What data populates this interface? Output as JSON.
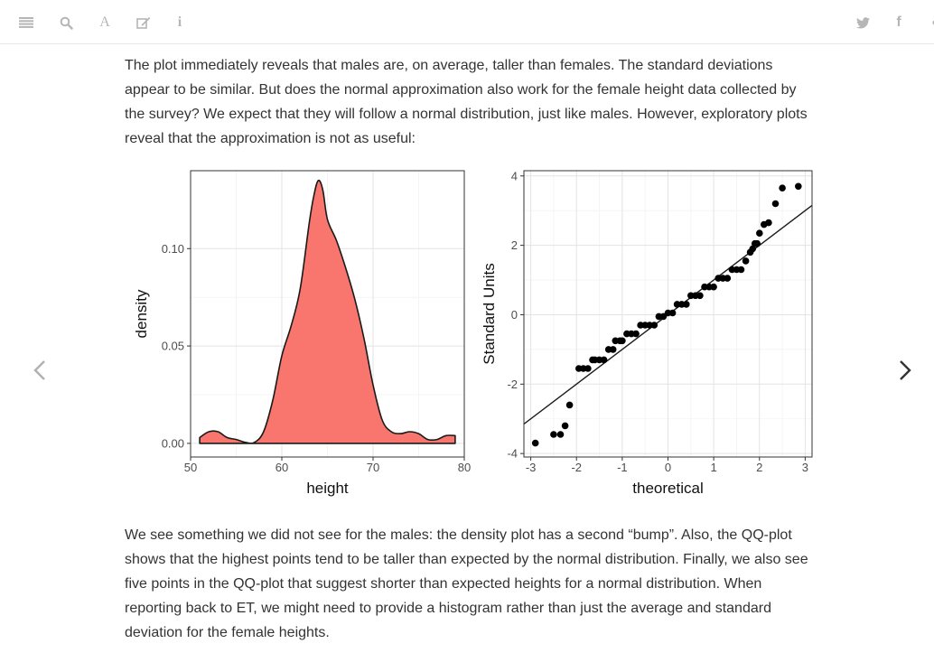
{
  "toolbar": {
    "left_icons": [
      "menu-icon",
      "search-icon",
      "font-icon",
      "edit-icon",
      "info-icon"
    ],
    "font_glyph": "A",
    "info_glyph": "i",
    "right_icons": [
      "twitter-icon",
      "facebook-icon",
      "share-icon"
    ],
    "facebook_glyph": "f",
    "icon_color": "#b6b6b6"
  },
  "content": {
    "paragraph1": "The plot immediately reveals that males are, on average, taller than females. The standard deviations appear to be similar. But does the normal approximation also work for the female height data collected by the survey? We expect that they will follow a normal distribution, just like males. However, exploratory plots reveal that the approximation is not as useful:",
    "paragraph2": "We see something we did not see for the males: the density plot has a second “bump”. Also, the QQ-plot shows that the highest points tend to be taller than expected by the normal distribution. Finally, we also see five points in the QQ-plot that suggest shorter than expected heights for a normal distribution. When reporting back to ET, we might need to provide a histogram rather than just the average and standard deviation for the female heights."
  },
  "navigation": {
    "prev": "chevron-left-icon",
    "next": "chevron-right-icon"
  },
  "chart_data": [
    {
      "type": "area",
      "title": "",
      "xlabel": "height",
      "ylabel": "density",
      "xlim": [
        50,
        80
      ],
      "ylim": [
        -0.007,
        0.14
      ],
      "x_ticks": [
        50,
        60,
        70,
        80
      ],
      "x_tick_labels": [
        "50",
        "60",
        "70",
        "80"
      ],
      "y_ticks": [
        0,
        0.05,
        0.1
      ],
      "y_tick_labels": [
        "0.00",
        "0.05",
        "0.10"
      ],
      "grid": true,
      "legend": "none",
      "fill_color": "#f8766d",
      "series": [
        {
          "x": [
            51,
            52,
            53,
            54,
            55,
            56,
            57,
            58,
            59,
            60,
            61,
            62,
            63,
            63.5,
            64,
            64.5,
            65,
            66,
            67,
            68,
            69,
            70,
            71,
            72,
            73,
            74,
            75,
            76,
            77,
            78,
            79
          ],
          "y": [
            0.003,
            0.006,
            0.006,
            0.003,
            0.002,
            0.0005,
            0.0005,
            0.006,
            0.022,
            0.045,
            0.06,
            0.079,
            0.113,
            0.127,
            0.135,
            0.13,
            0.115,
            0.104,
            0.09,
            0.074,
            0.054,
            0.03,
            0.012,
            0.006,
            0.005,
            0.006,
            0.005,
            0.002,
            0.002,
            0.004,
            0.004
          ]
        }
      ]
    },
    {
      "type": "scatter",
      "title": "",
      "xlabel": "theoretical",
      "ylabel": "Standard Units",
      "xlim": [
        -3.15,
        3.15
      ],
      "ylim": [
        -4.1,
        4.15
      ],
      "x_ticks": [
        -3,
        -2,
        -1,
        0,
        1,
        2,
        3
      ],
      "x_tick_labels": [
        "-3",
        "-2",
        "-1",
        "0",
        "1",
        "2",
        "3"
      ],
      "y_ticks": [
        -4,
        -2,
        0,
        2,
        4
      ],
      "y_tick_labels": [
        "-4",
        "-2",
        "0",
        "2",
        "4"
      ],
      "grid": true,
      "legend": "none",
      "reference_line": {
        "slope": 1,
        "intercept": 0
      },
      "series": [
        {
          "x": [
            -2.9,
            -2.5,
            -2.35,
            -2.25,
            -2.15,
            -1.95,
            -1.85,
            -1.75,
            -1.65,
            -1.6,
            -1.5,
            -1.4,
            -1.3,
            -1.2,
            -1.15,
            -1.05,
            -1.0,
            -0.9,
            -0.8,
            -0.7,
            -0.6,
            -0.5,
            -0.4,
            -0.3,
            -0.2,
            -0.1,
            0.0,
            0.1,
            0.2,
            0.3,
            0.4,
            0.5,
            0.6,
            0.7,
            0.8,
            0.9,
            1.0,
            1.1,
            1.2,
            1.3,
            1.4,
            1.5,
            1.6,
            1.7,
            1.8,
            1.85,
            1.9,
            1.95,
            2.0,
            2.1,
            2.2,
            2.35,
            2.5,
            2.85
          ],
          "y": [
            -3.7,
            -3.45,
            -3.45,
            -3.2,
            -2.6,
            -1.55,
            -1.55,
            -1.55,
            -1.3,
            -1.3,
            -1.3,
            -1.3,
            -1.0,
            -1.0,
            -0.75,
            -0.75,
            -0.75,
            -0.55,
            -0.55,
            -0.55,
            -0.3,
            -0.3,
            -0.3,
            -0.3,
            -0.05,
            -0.05,
            0.05,
            0.05,
            0.3,
            0.3,
            0.3,
            0.55,
            0.55,
            0.55,
            0.8,
            0.8,
            0.8,
            1.05,
            1.05,
            1.05,
            1.3,
            1.3,
            1.3,
            1.55,
            1.8,
            1.9,
            2.05,
            2.05,
            2.35,
            2.6,
            2.65,
            3.2,
            3.65,
            3.7
          ]
        }
      ]
    }
  ]
}
